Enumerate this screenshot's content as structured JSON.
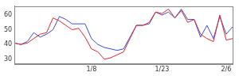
{
  "chart_data": {
    "type": "line",
    "categories": [
      null,
      null,
      null,
      null,
      null,
      null,
      null,
      null,
      null,
      null,
      null,
      null,
      "1/8",
      null,
      null,
      null,
      null,
      null,
      null,
      null,
      null,
      null,
      null,
      "1/23",
      null,
      null,
      null,
      null,
      null,
      null,
      null,
      null,
      null,
      "2/6",
      null
    ],
    "series": [
      {
        "color": "#e02828",
        "values": [
          41,
          40,
          41,
          44,
          47,
          48,
          58,
          56,
          53,
          50,
          51,
          45,
          37,
          35,
          30,
          31,
          33,
          35,
          44,
          53,
          53,
          55,
          62,
          61,
          64,
          58,
          63,
          55,
          57,
          47,
          44,
          42,
          60,
          43,
          44
        ]
      },
      {
        "color": "#3a4fd8",
        "values": [
          41,
          40,
          42,
          48,
          45,
          47,
          50,
          59,
          57,
          54,
          54,
          54,
          44,
          40,
          38,
          37,
          36,
          37,
          45,
          53,
          53,
          54,
          62,
          60,
          62,
          58,
          64,
          57,
          57,
          45,
          53,
          44,
          59,
          47,
          52
        ]
      }
    ],
    "ylim": [
      27,
      66
    ],
    "yticks": [
      30,
      40,
      50,
      60
    ],
    "grid": false
  }
}
